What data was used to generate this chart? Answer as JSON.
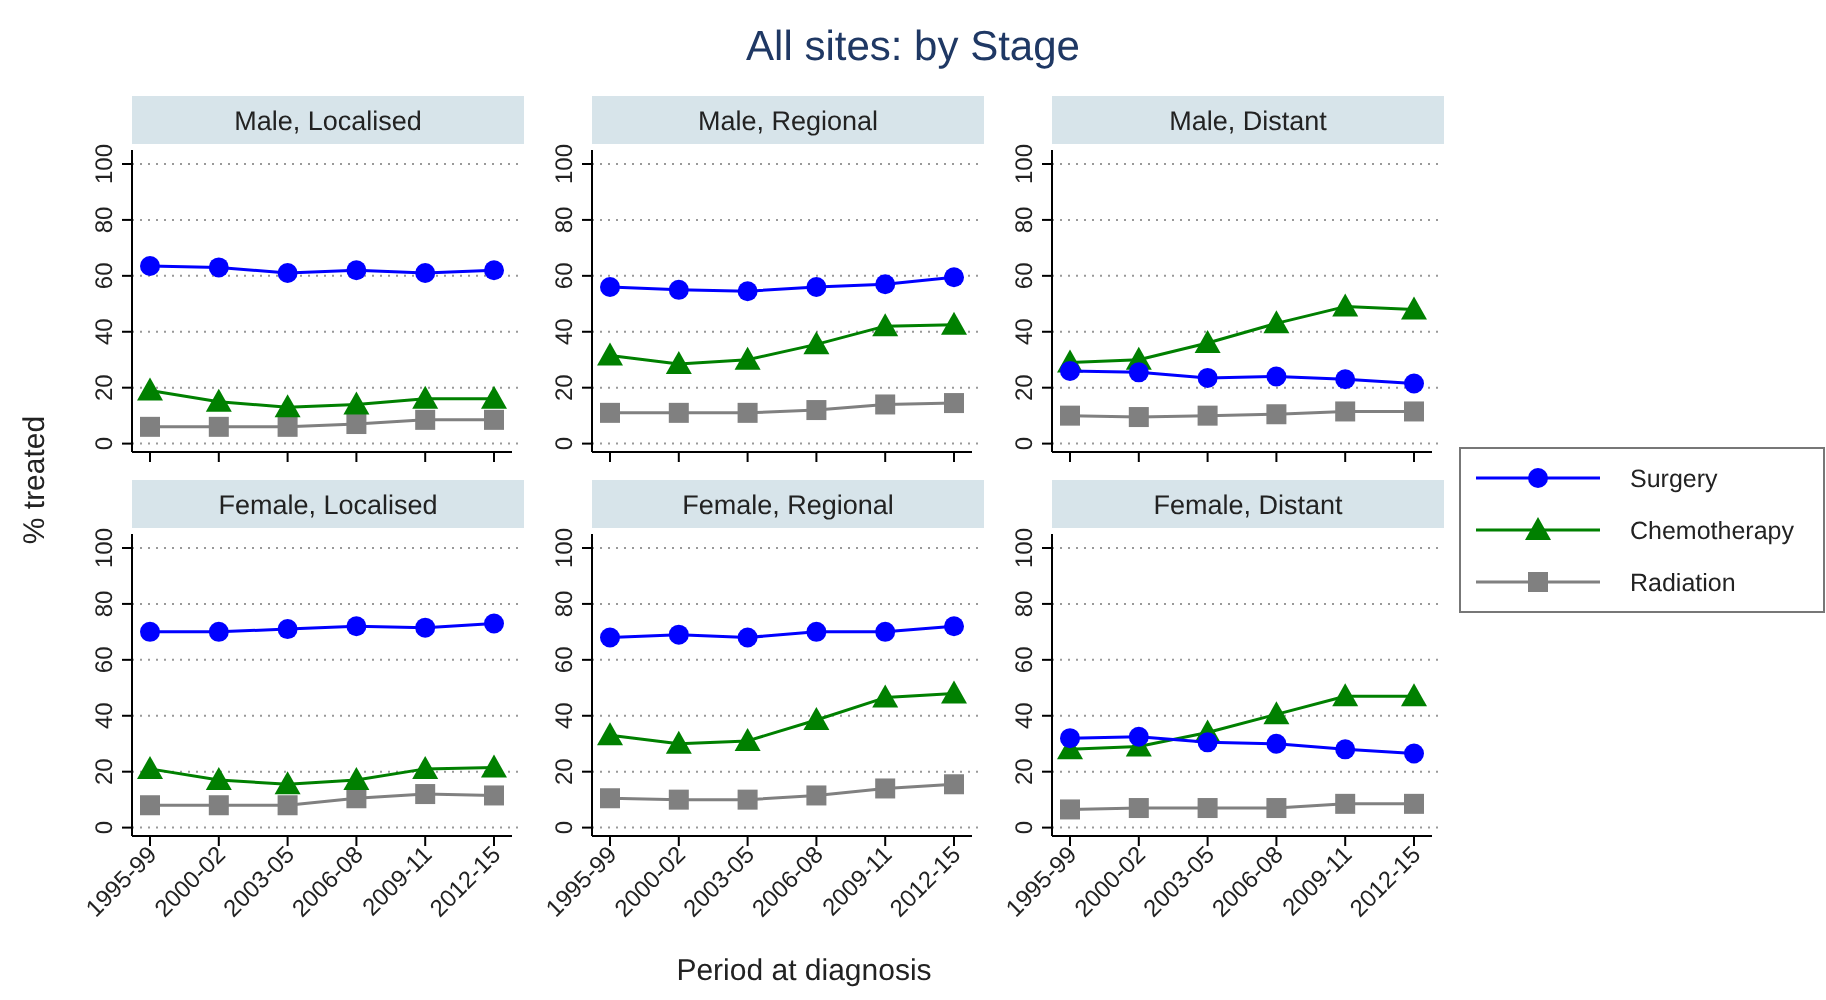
{
  "chart_data": [
    {
      "type": "line",
      "title": "Male, Localised",
      "annotations": [
        "All sites: by Stage"
      ],
      "ylim": [
        -3,
        105
      ],
      "yticks": [
        0,
        20,
        40,
        60,
        80,
        100
      ],
      "grid": "y",
      "tick_labels": "y",
      "series": [
        {
          "color": "#0000ff",
          "marker": "circle",
          "values": [
            63.5,
            63,
            61,
            62,
            61,
            62
          ]
        },
        {
          "color": "#008000",
          "marker": "triangle",
          "values": [
            19,
            15,
            13,
            14,
            16,
            16
          ]
        },
        {
          "color": "#808080",
          "marker": "square",
          "values": [
            6,
            6,
            6,
            7,
            8.5,
            8.5
          ]
        }
      ]
    },
    {
      "type": "line",
      "title": "Male, Regional",
      "ylim": [
        -3,
        105
      ],
      "yticks": [
        0,
        20,
        40,
        60,
        80,
        100
      ],
      "grid": "y",
      "tick_labels": "y",
      "series": [
        {
          "color": "#0000ff",
          "marker": "circle",
          "values": [
            56,
            55,
            54.5,
            56,
            57,
            59.5
          ]
        },
        {
          "color": "#008000",
          "marker": "triangle",
          "values": [
            31.5,
            28.5,
            30,
            35.5,
            42,
            42.5
          ]
        },
        {
          "color": "#808080",
          "marker": "square",
          "values": [
            11,
            11,
            11,
            12,
            14,
            14.5
          ]
        }
      ]
    },
    {
      "type": "line",
      "title": "Male, Distant",
      "ylim": [
        -3,
        105
      ],
      "yticks": [
        0,
        20,
        40,
        60,
        80,
        100
      ],
      "grid": "y",
      "tick_labels": "y",
      "series": [
        {
          "color": "#0000ff",
          "marker": "circle",
          "values": [
            26,
            25.5,
            23.5,
            24,
            23,
            21.5
          ]
        },
        {
          "color": "#008000",
          "marker": "triangle",
          "values": [
            29,
            30,
            36,
            43,
            49,
            48
          ]
        },
        {
          "color": "#808080",
          "marker": "square",
          "values": [
            10,
            9.5,
            10,
            10.5,
            11.5,
            11.5
          ]
        }
      ]
    },
    {
      "type": "line",
      "title": "Female, Localised",
      "ylabel": "% treated",
      "categories": [
        "1995-99",
        "2000-02",
        "2003-05",
        "2006-08",
        "2009-11",
        "2012-15"
      ],
      "ylim": [
        -3,
        105
      ],
      "yticks": [
        0,
        20,
        40,
        60,
        80,
        100
      ],
      "grid": "y",
      "series": [
        {
          "color": "#0000ff",
          "marker": "circle",
          "values": [
            70,
            70,
            71,
            72,
            71.5,
            73
          ]
        },
        {
          "color": "#008000",
          "marker": "triangle",
          "values": [
            21,
            17,
            15.5,
            17,
            21,
            21.5
          ]
        },
        {
          "color": "#808080",
          "marker": "square",
          "values": [
            8,
            8,
            8,
            10.5,
            12,
            11.5
          ]
        }
      ]
    },
    {
      "type": "line",
      "title": "Female, Regional",
      "xlabel": "Period at diagnosis",
      "categories": [
        "1995-99",
        "2000-02",
        "2003-05",
        "2006-08",
        "2009-11",
        "2012-15"
      ],
      "ylim": [
        -3,
        105
      ],
      "yticks": [
        0,
        20,
        40,
        60,
        80,
        100
      ],
      "grid": "y",
      "series": [
        {
          "color": "#0000ff",
          "marker": "circle",
          "values": [
            68,
            69,
            68,
            70,
            70,
            72
          ]
        },
        {
          "color": "#008000",
          "marker": "triangle",
          "values": [
            33,
            30,
            31,
            38.5,
            46.5,
            48
          ]
        },
        {
          "color": "#808080",
          "marker": "square",
          "values": [
            10.5,
            10,
            10,
            11.5,
            14,
            15.5
          ]
        }
      ]
    },
    {
      "type": "line",
      "title": "Female, Distant",
      "legend": "right",
      "categories": [
        "1995-99",
        "2000-02",
        "2003-05",
        "2006-08",
        "2009-11",
        "2012-15"
      ],
      "ylim": [
        -3,
        105
      ],
      "yticks": [
        0,
        20,
        40,
        60,
        80,
        100
      ],
      "grid": "y",
      "series": [
        {
          "name": "Surgery",
          "color": "#0000ff",
          "marker": "circle",
          "values": [
            32,
            32.5,
            30.5,
            30,
            28,
            26.5
          ]
        },
        {
          "name": "Chemotherapy",
          "color": "#008000",
          "marker": "triangle",
          "values": [
            28,
            29,
            34,
            40.5,
            47,
            47
          ]
        },
        {
          "name": "Radiation",
          "color": "#808080",
          "marker": "square",
          "values": [
            6.5,
            7,
            7,
            7,
            8.5,
            8.5
          ]
        }
      ]
    }
  ]
}
